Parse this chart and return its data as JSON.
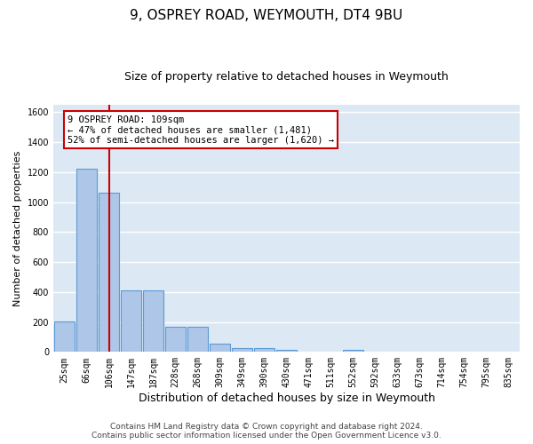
{
  "title": "9, OSPREY ROAD, WEYMOUTH, DT4 9BU",
  "subtitle": "Size of property relative to detached houses in Weymouth",
  "xlabel": "Distribution of detached houses by size in Weymouth",
  "ylabel": "Number of detached properties",
  "bin_labels": [
    "25sqm",
    "66sqm",
    "106sqm",
    "147sqm",
    "187sqm",
    "228sqm",
    "268sqm",
    "309sqm",
    "349sqm",
    "390sqm",
    "430sqm",
    "471sqm",
    "511sqm",
    "552sqm",
    "592sqm",
    "633sqm",
    "673sqm",
    "714sqm",
    "754sqm",
    "795sqm",
    "835sqm"
  ],
  "bar_values": [
    205,
    1220,
    1065,
    410,
    410,
    165,
    165,
    55,
    28,
    28,
    15,
    0,
    0,
    15,
    0,
    0,
    0,
    0,
    0,
    0,
    0
  ],
  "bar_color": "#aec6e8",
  "bar_edge_color": "#5b9bd5",
  "vline_bin_index": 2.0,
  "annotation_line1": "9 OSPREY ROAD: 109sqm",
  "annotation_line2": "← 47% of detached houses are smaller (1,481)",
  "annotation_line3": "52% of semi-detached houses are larger (1,620) →",
  "annotation_box_color": "#ffffff",
  "annotation_box_edge_color": "#cc0000",
  "vline_color": "#cc0000",
  "fig_background_color": "#ffffff",
  "plot_background": "#dce9f5",
  "grid_color": "#ffffff",
  "footer_line1": "Contains HM Land Registry data © Crown copyright and database right 2024.",
  "footer_line2": "Contains public sector information licensed under the Open Government Licence v3.0.",
  "ylim": [
    0,
    1650
  ],
  "yticks": [
    0,
    200,
    400,
    600,
    800,
    1000,
    1200,
    1400,
    1600
  ],
  "title_fontsize": 11,
  "subtitle_fontsize": 9,
  "ylabel_fontsize": 8,
  "xlabel_fontsize": 9,
  "tick_fontsize": 7,
  "annotation_fontsize": 7.5,
  "footer_fontsize": 6.5
}
